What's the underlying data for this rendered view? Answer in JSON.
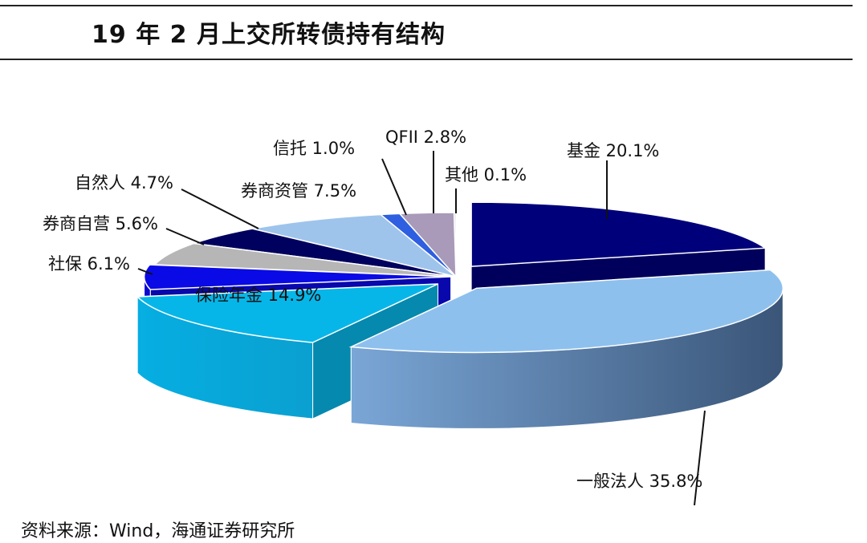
{
  "title": "19 年 2 月上交所转债持有结构",
  "source": "资料来源：Wind，海通证券研究所",
  "colors": {
    "基金": "#00007a",
    "一般法人": "#8ec0ee",
    "保险年金": "#07b6e8",
    "社保": "#0a0ae6",
    "券商自营": "#b6b6b6",
    "自然人": "#00005e",
    "券商资管": "#9ec4ec",
    "信托": "#2e5fe0",
    "QFII": "#a89ab8",
    "其他": "#cfcfcf"
  },
  "chart_data": {
    "type": "pie",
    "variant": "3d-exploded",
    "title": "19 年 2 月上交所转债持有结构",
    "unit": "%",
    "labels": [
      "基金",
      "一般法人",
      "保险年金",
      "社保",
      "券商自营",
      "自然人",
      "券商资管",
      "信托",
      "QFII",
      "其他"
    ],
    "values": [
      20.1,
      35.8,
      14.9,
      6.1,
      5.6,
      4.7,
      7.5,
      1.0,
      2.8,
      0.1
    ],
    "display_labels": [
      "基金 20.1%",
      "一般法人 35.8%",
      "保险年金 14.9%",
      "社保 6.1%",
      "券商自营 5.6%",
      "自然人 4.7%",
      "券商资管 7.5%",
      "信托 1.0%",
      "QFII 2.8%",
      "其他 0.1%"
    ]
  }
}
